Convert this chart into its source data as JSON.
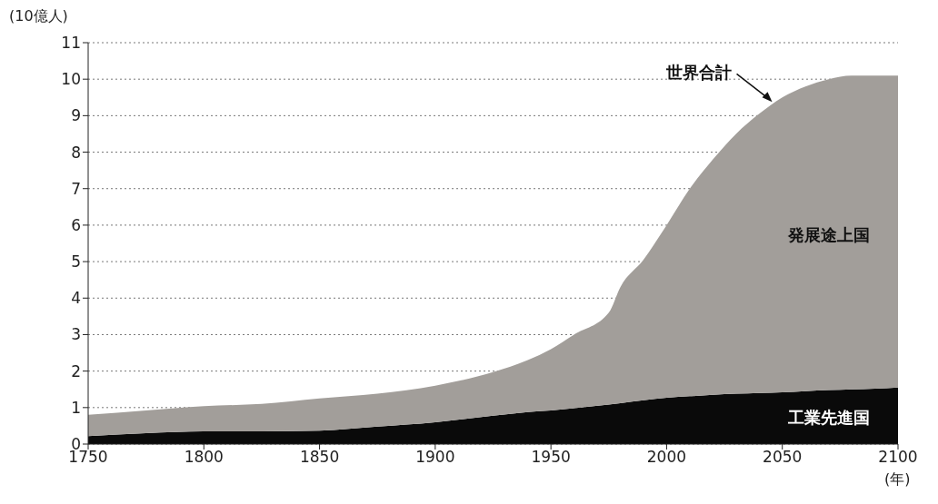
{
  "chart_data": {
    "type": "area",
    "stacked": true,
    "xlabel": "(年)",
    "ylabel": "(10億人)",
    "x": [
      1750,
      1775,
      1800,
      1825,
      1850,
      1875,
      1900,
      1925,
      1940,
      1950,
      1960,
      1975,
      1980,
      1990,
      2000,
      2010,
      2020,
      2030,
      2040,
      2050,
      2060,
      2070,
      2080,
      2090,
      2100
    ],
    "series": [
      {
        "name": "工業先進国",
        "color": "#0a0a0a",
        "values": [
          0.22,
          0.3,
          0.35,
          0.35,
          0.37,
          0.48,
          0.6,
          0.78,
          0.88,
          0.92,
          0.98,
          1.08,
          1.12,
          1.2,
          1.27,
          1.31,
          1.35,
          1.38,
          1.4,
          1.42,
          1.45,
          1.48,
          1.5,
          1.52,
          1.55
        ]
      },
      {
        "name": "発展途上国",
        "color": "#a29e9a",
        "values": [
          0.58,
          0.62,
          0.69,
          0.75,
          0.88,
          0.9,
          1.0,
          1.19,
          1.42,
          1.68,
          2.02,
          2.52,
          3.18,
          3.85,
          4.73,
          5.69,
          6.45,
          7.12,
          7.65,
          8.08,
          8.35,
          8.52,
          8.6,
          8.58,
          8.55
        ]
      }
    ],
    "annotations": [
      {
        "text": "世界合計",
        "x": 2046,
        "y": 9.35
      }
    ],
    "xlim": [
      1750,
      2100
    ],
    "xticks": [
      1750,
      1800,
      1850,
      1900,
      1950,
      2000,
      2050,
      2100
    ],
    "ylim": [
      0,
      11
    ],
    "yticks": [
      0,
      1,
      2,
      3,
      4,
      5,
      6,
      7,
      8,
      9,
      10,
      11
    ],
    "grid": "y",
    "legend": false
  }
}
